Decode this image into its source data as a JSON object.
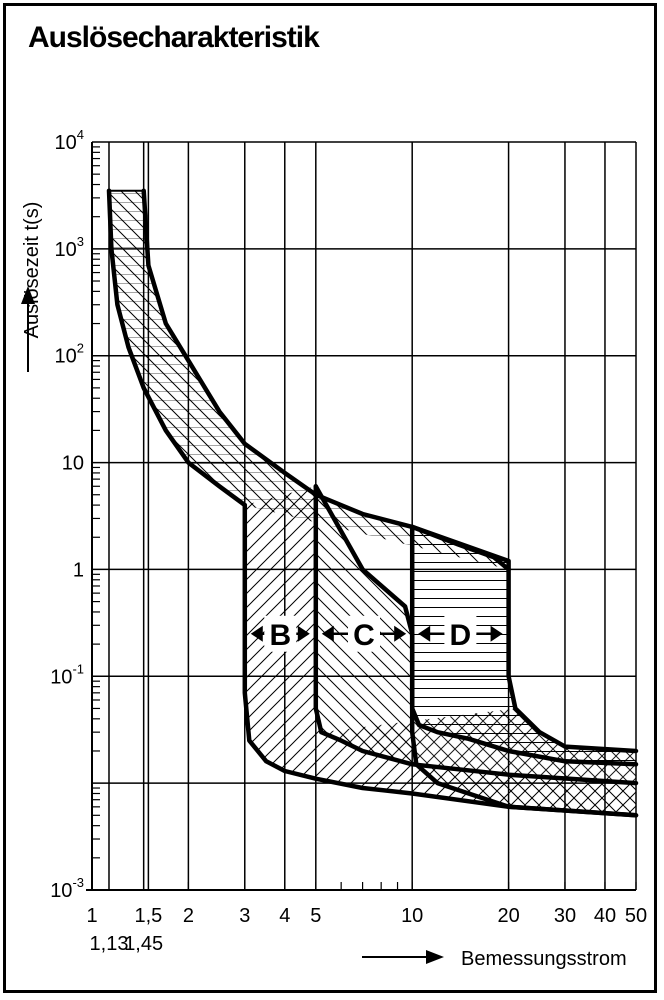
{
  "chart_data": {
    "type": "area",
    "title": "Auslösecharakteristik",
    "ylabel": "Auslösezeit t(s)",
    "xlabel": "Bemessungsstrom",
    "x_scale": "log",
    "y_scale": "log",
    "xlim": [
      1,
      50
    ],
    "ylim": [
      0.001,
      10000
    ],
    "x_ticks": [
      "1",
      "1,5",
      "2",
      "3",
      "4",
      "5",
      "10",
      "20",
      "30",
      "40",
      "50"
    ],
    "x_ticks_below": [
      "1,13",
      "1,45"
    ],
    "y_ticks": [
      {
        "base": "10",
        "exp": "4"
      },
      {
        "base": "10",
        "exp": "3"
      },
      {
        "base": "10",
        "exp": "2"
      },
      {
        "base": "10",
        "exp": ""
      },
      {
        "base": "1",
        "exp": ""
      },
      {
        "base": "10",
        "exp": "-1"
      },
      {
        "base": "10",
        "exp": "-3"
      }
    ],
    "grid": true,
    "series": [
      {
        "name": "",
        "role": "thermal-lower",
        "x": [
          1.13,
          1.15,
          1.2,
          1.3,
          1.45,
          1.7,
          2.0,
          2.5,
          3.0
        ],
        "y": [
          3500,
          1000,
          300,
          120,
          50,
          20,
          10,
          6,
          4
        ]
      },
      {
        "name": "",
        "role": "thermal-upper",
        "x": [
          1.45,
          1.5,
          1.7,
          2.0,
          2.5,
          3.0,
          4.0,
          5.0,
          7.0,
          10.0,
          14.0,
          18.0,
          20.0
        ],
        "y": [
          3500,
          700,
          200,
          90,
          30,
          15,
          8,
          5,
          3.3,
          2.5,
          1.7,
          1.3,
          1.0
        ]
      },
      {
        "name": "B",
        "range": [
          3,
          5
        ],
        "x": [
          3.0,
          3.0,
          3.0,
          3.0,
          3.1,
          3.5,
          4.0,
          5.0,
          7.0,
          10.0,
          20.0,
          50.0
        ],
        "y": [
          4.0,
          2.0,
          0.3,
          0.07,
          0.025,
          0.016,
          0.013,
          0.011,
          0.009,
          0.008,
          0.006,
          0.005
        ]
      },
      {
        "name": "C",
        "range": [
          5,
          10
        ],
        "x": [
          5.0,
          5.0,
          5.0,
          5.0,
          5.2,
          6.0,
          7.0,
          10.0,
          20.0,
          50.0
        ],
        "y": [
          6.0,
          1.5,
          0.15,
          0.05,
          0.03,
          0.025,
          0.02,
          0.015,
          0.012,
          0.01
        ],
        "x_upper": [
          5.0,
          7.0,
          9.5,
          10.0,
          10.0,
          10.0,
          10.3,
          12.0,
          15.0,
          20.0,
          50.0
        ],
        "y_upper": [
          6.0,
          1.0,
          0.45,
          0.25,
          0.1,
          0.03,
          0.015,
          0.01,
          0.008,
          0.006,
          0.005
        ]
      },
      {
        "name": "D",
        "range": [
          10,
          20
        ],
        "x": [
          10.0,
          10.0,
          10.0,
          10.0,
          10.5,
          12.0,
          15.0,
          20.0,
          30.0,
          50.0
        ],
        "y": [
          2.5,
          0.5,
          0.1,
          0.05,
          0.035,
          0.03,
          0.026,
          0.02,
          0.016,
          0.015
        ],
        "x_upper": [
          10.0,
          20.0,
          20.0,
          20.0,
          20.0,
          21.0,
          25.0,
          30.0,
          50.0
        ],
        "y_upper": [
          2.5,
          1.2,
          0.8,
          0.2,
          0.1,
          0.05,
          0.03,
          0.022,
          0.02
        ]
      }
    ],
    "band_labels": [
      "B",
      "C",
      "D"
    ]
  }
}
